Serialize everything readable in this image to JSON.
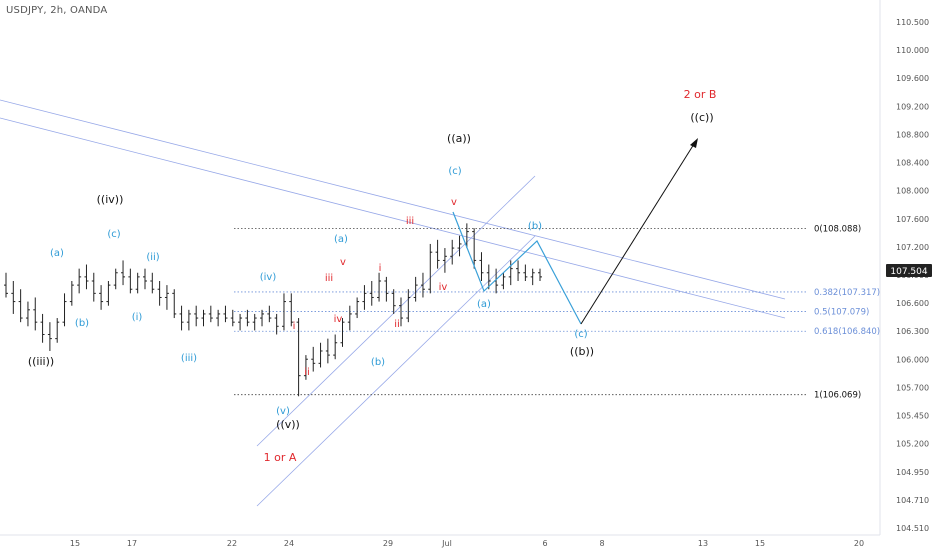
{
  "header": {
    "ticker": "USDJPY, 2h, OANDA"
  },
  "price_tag": "107.504",
  "chart_data": {
    "type": "bar",
    "xlim": [
      12.0,
      21.6
    ],
    "ylim": [
      104.45,
      110.62
    ],
    "colors": {
      "bars": "#222222",
      "blue": "#2f9bd6",
      "red": "#e0282d",
      "black": "#111111",
      "fib": "#6b8fd8",
      "channel": "#97a8e8"
    },
    "x_ticks": [
      {
        "x": 14.4,
        "label": "15"
      },
      {
        "x": 15.4,
        "label": "17"
      },
      {
        "x": 17.8,
        "label": "22"
      },
      {
        "x": 18.8,
        "label": "24"
      },
      {
        "x": 20.5,
        "label": "29"
      },
      {
        "x": 21.2,
        "label": "Jul"
      }
    ],
    "x_ticks_right": [
      {
        "px": 545,
        "label": "6"
      },
      {
        "px": 602,
        "label": "8"
      },
      {
        "px": 703,
        "label": "13"
      },
      {
        "px": 760,
        "label": "15"
      },
      {
        "px": 859,
        "label": "20"
      }
    ],
    "y_ticks": [
      "110.500",
      "110.000",
      "109.600",
      "109.200",
      "108.800",
      "108.400",
      "108.000",
      "107.600",
      "107.200",
      "106.900",
      "106.600",
      "106.300",
      "106.000",
      "105.700",
      "105.450",
      "105.200",
      "104.950",
      "104.710",
      "104.510"
    ],
    "fib_levels": [
      {
        "value": 108.088,
        "label": "0(108.088)",
        "style": "dotted-dark"
      },
      {
        "value": 107.317,
        "label": "0.382(107.317)",
        "style": "dotted-blue"
      },
      {
        "value": 107.079,
        "label": "0.5(107.079)",
        "style": "dotted-blue"
      },
      {
        "value": 106.84,
        "label": "0.618(106.840)",
        "style": "dotted-blue"
      },
      {
        "value": 106.069,
        "label": "1(106.069)",
        "style": "dotted-dark"
      }
    ],
    "ohlc_bars": [
      [
        107.4,
        107.55,
        107.25,
        107.3
      ],
      [
        107.3,
        107.45,
        107.05,
        107.2
      ],
      [
        107.2,
        107.35,
        106.95,
        107.0
      ],
      [
        107.0,
        107.2,
        106.9,
        107.1
      ],
      [
        107.1,
        107.25,
        106.85,
        106.95
      ],
      [
        106.95,
        107.05,
        106.7,
        106.8
      ],
      [
        106.8,
        106.95,
        106.6,
        106.75
      ],
      [
        106.75,
        107.0,
        106.7,
        106.95
      ],
      [
        106.95,
        107.3,
        106.9,
        107.2
      ],
      [
        107.2,
        107.45,
        107.15,
        107.4
      ],
      [
        107.4,
        107.6,
        107.3,
        107.5
      ],
      [
        107.5,
        107.65,
        107.35,
        107.45
      ],
      [
        107.45,
        107.55,
        107.2,
        107.3
      ],
      [
        107.3,
        107.4,
        107.1,
        107.2
      ],
      [
        107.2,
        107.45,
        107.15,
        107.4
      ],
      [
        107.4,
        107.6,
        107.35,
        107.55
      ],
      [
        107.55,
        107.7,
        107.4,
        107.5
      ],
      [
        107.5,
        107.6,
        107.3,
        107.35
      ],
      [
        107.35,
        107.55,
        107.3,
        107.5
      ],
      [
        107.5,
        107.6,
        107.35,
        107.45
      ],
      [
        107.45,
        107.55,
        107.3,
        107.35
      ],
      [
        107.35,
        107.45,
        107.15,
        107.25
      ],
      [
        107.25,
        107.4,
        107.1,
        107.3
      ],
      [
        107.3,
        107.35,
        107.0,
        107.05
      ],
      [
        107.05,
        107.15,
        106.85,
        106.95
      ],
      [
        106.95,
        107.1,
        106.85,
        107.05
      ],
      [
        107.05,
        107.15,
        106.9,
        107.0
      ],
      [
        107.0,
        107.1,
        106.9,
        107.05
      ],
      [
        107.05,
        107.15,
        106.95,
        107.0
      ],
      [
        107.0,
        107.1,
        106.9,
        107.05
      ],
      [
        107.05,
        107.15,
        106.95,
        107.0
      ],
      [
        107.0,
        107.1,
        106.9,
        106.95
      ],
      [
        106.95,
        107.05,
        106.85,
        107.0
      ],
      [
        107.0,
        107.1,
        106.9,
        106.95
      ],
      [
        106.95,
        107.05,
        106.85,
        107.0
      ],
      [
        107.0,
        107.1,
        106.9,
        107.05
      ],
      [
        107.05,
        107.15,
        106.95,
        107.0
      ],
      [
        107.0,
        107.05,
        106.8,
        106.9
      ],
      [
        106.9,
        107.3,
        106.85,
        107.2
      ],
      [
        107.2,
        107.3,
        106.9,
        106.95
      ],
      [
        106.95,
        107.0,
        106.05,
        106.3
      ],
      [
        106.3,
        106.55,
        106.25,
        106.5
      ],
      [
        106.5,
        106.65,
        106.35,
        106.45
      ],
      [
        106.45,
        106.7,
        106.4,
        106.6
      ],
      [
        106.6,
        106.75,
        106.45,
        106.55
      ],
      [
        106.55,
        106.8,
        106.5,
        106.7
      ],
      [
        106.7,
        107.0,
        106.65,
        106.95
      ],
      [
        106.95,
        107.15,
        106.85,
        107.05
      ],
      [
        107.05,
        107.25,
        107.0,
        107.2
      ],
      [
        107.2,
        107.4,
        107.1,
        107.3
      ],
      [
        107.3,
        107.45,
        107.15,
        107.25
      ],
      [
        107.25,
        107.55,
        107.2,
        107.45
      ],
      [
        107.45,
        107.5,
        107.2,
        107.3
      ],
      [
        107.3,
        107.35,
        107.05,
        107.15
      ],
      [
        107.15,
        107.25,
        106.9,
        107.0
      ],
      [
        107.0,
        107.35,
        106.95,
        107.25
      ],
      [
        107.25,
        107.5,
        107.2,
        107.4
      ],
      [
        107.4,
        107.55,
        107.25,
        107.35
      ],
      [
        107.35,
        107.9,
        107.3,
        107.8
      ],
      [
        107.8,
        107.95,
        107.6,
        107.7
      ],
      [
        107.7,
        107.85,
        107.55,
        107.75
      ],
      [
        107.75,
        107.95,
        107.65,
        107.85
      ],
      [
        107.85,
        108.0,
        107.75,
        107.9
      ],
      [
        107.9,
        108.15,
        107.85,
        108.05
      ],
      [
        108.05,
        108.09,
        107.6,
        107.7
      ],
      [
        107.7,
        107.8,
        107.45,
        107.55
      ],
      [
        107.55,
        107.65,
        107.35,
        107.45
      ],
      [
        107.45,
        107.6,
        107.3,
        107.4
      ],
      [
        107.4,
        107.55,
        107.35,
        107.5
      ],
      [
        107.5,
        107.7,
        107.4,
        107.6
      ],
      [
        107.6,
        107.7,
        107.45,
        107.55
      ],
      [
        107.55,
        107.65,
        107.45,
        107.5
      ],
      [
        107.5,
        107.6,
        107.4,
        107.55
      ],
      [
        107.55,
        107.6,
        107.45,
        107.5
      ]
    ],
    "wave_labels": [
      {
        "text": "(a)",
        "color": "blue"
      },
      {
        "text": "(b)",
        "color": "blue"
      },
      {
        "text": "(c)",
        "color": "blue"
      },
      {
        "text": "(ii)",
        "color": "blue"
      },
      {
        "text": "(i)",
        "color": "blue"
      },
      {
        "text": "(iii)",
        "color": "blue"
      },
      {
        "text": "((iv))",
        "color": "black"
      },
      {
        "text": "((iii))",
        "color": "black"
      },
      {
        "text": "(iv)",
        "color": "blue"
      },
      {
        "text": "(v)",
        "color": "blue"
      },
      {
        "text": "((v))",
        "color": "black"
      },
      {
        "text": "1 or A",
        "color": "red"
      },
      {
        "text": "i",
        "color": "red"
      },
      {
        "text": "ii",
        "color": "red"
      },
      {
        "text": "iii",
        "color": "red"
      },
      {
        "text": "iv",
        "color": "red"
      },
      {
        "text": "v",
        "color": "red"
      },
      {
        "text": "(a)",
        "color": "blue"
      },
      {
        "text": "(b)",
        "color": "blue"
      },
      {
        "text": "i",
        "color": "red"
      },
      {
        "text": "ii",
        "color": "red"
      },
      {
        "text": "iii",
        "color": "red"
      },
      {
        "text": "iv",
        "color": "red"
      },
      {
        "text": "v",
        "color": "red"
      },
      {
        "text": "(c)",
        "color": "blue"
      },
      {
        "text": "((a))",
        "color": "black"
      },
      {
        "text": "(a)",
        "color": "blue"
      },
      {
        "text": "(b)",
        "color": "blue"
      },
      {
        "text": "(c)",
        "color": "blue"
      },
      {
        "text": "((b))",
        "color": "black"
      },
      {
        "text": "2 or B",
        "color": "red"
      },
      {
        "text": "((c))",
        "color": "black"
      }
    ]
  }
}
